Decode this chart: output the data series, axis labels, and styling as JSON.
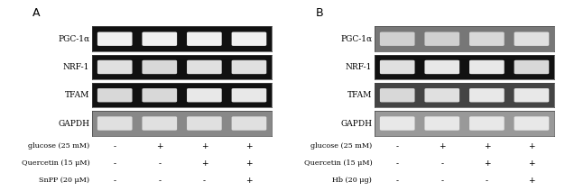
{
  "panel_A_label": "A",
  "panel_B_label": "B",
  "gene_labels": [
    "PGC-1α",
    "NRF-1",
    "TFAM",
    "GAPDH"
  ],
  "row_labels_A": [
    "glucose (25 mM)",
    "Quercetin (15 μM)",
    "SnPP (20 μM)"
  ],
  "row_labels_B": [
    "glucose (25 mM)",
    "Quercetin (15 μM)",
    "Hb (20 μg)"
  ],
  "signs_A": [
    [
      "-",
      "+",
      "+",
      "+"
    ],
    [
      "-",
      "-",
      "+",
      "+"
    ],
    [
      "-",
      "-",
      "-",
      "+"
    ]
  ],
  "signs_B": [
    [
      "-",
      "+",
      "+",
      "+"
    ],
    [
      "-",
      "-",
      "+",
      "+"
    ],
    [
      "-",
      "-",
      "-",
      "+"
    ]
  ],
  "n_lanes": 4,
  "bg_color": "#f0f0f0",
  "gel_bg_A": [
    "#111111",
    "#111111",
    "#111111",
    "#888888"
  ],
  "gel_bg_B": [
    "#777777",
    "#111111",
    "#444444",
    "#999999"
  ],
  "band_colors_A": [
    [
      "#f0f0f0",
      "#f0f0f0",
      "#f0f0f0",
      "#f0f0f0"
    ],
    [
      "#e0e0e0",
      "#d8d8d8",
      "#e0e0e0",
      "#e0e0e0"
    ],
    [
      "#d8d8d8",
      "#d8d8d8",
      "#e8e8e8",
      "#e8e8e8"
    ],
    [
      "#e0e0e0",
      "#e0e0e0",
      "#e0e0e0",
      "#e0e0e0"
    ]
  ],
  "band_colors_B": [
    [
      "#d0d0d0",
      "#d0d0d0",
      "#d8d8d8",
      "#e0e0e0"
    ],
    [
      "#e0e0e0",
      "#e8e8e8",
      "#e8e8e8",
      "#d8d8d8"
    ],
    [
      "#d8d8d8",
      "#e0e0e0",
      "#e8e8e8",
      "#e8e8e8"
    ],
    [
      "#e8e8e8",
      "#e8e8e8",
      "#e8e8e8",
      "#e8e8e8"
    ]
  ],
  "border_color": "#555555"
}
